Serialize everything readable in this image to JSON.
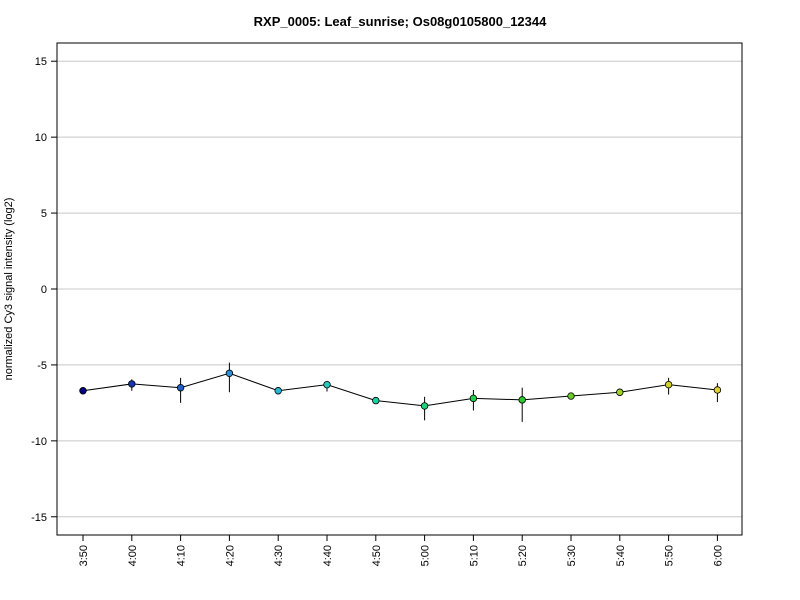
{
  "chart_data": {
    "type": "line",
    "title": "RXP_0005: Leaf_sunrise; Os08g0105800_12344",
    "xlabel": "",
    "ylabel": "normalized Cy3 signal intensity (log2)",
    "ylim": [
      -16.2,
      16.2
    ],
    "yticks": [
      -15,
      -10,
      -5,
      0,
      5,
      10,
      15
    ],
    "grid": true,
    "categories": [
      "3:50",
      "4:00",
      "4:10",
      "4:20",
      "4:30",
      "4:40",
      "4:50",
      "5:00",
      "5:10",
      "5:20",
      "5:30",
      "5:40",
      "5:50",
      "6:00"
    ],
    "values": [
      -6.7,
      -6.25,
      -6.5,
      -5.55,
      -6.7,
      -6.3,
      -7.35,
      -7.7,
      -7.2,
      -7.3,
      -7.05,
      -6.8,
      -6.3,
      -6.65
    ],
    "error_low": [
      -6.8,
      -6.7,
      -7.5,
      -6.8,
      -6.8,
      -6.75,
      -7.45,
      -8.65,
      -8.0,
      -8.75,
      -7.15,
      -6.9,
      -6.95,
      -7.45
    ],
    "error_high": [
      -6.6,
      -5.95,
      -5.85,
      -4.85,
      -6.6,
      -6.05,
      -7.25,
      -7.1,
      -6.65,
      -6.5,
      -6.95,
      -6.7,
      -5.85,
      -6.2
    ],
    "point_colors": [
      "#000080",
      "#1a33b3",
      "#1f5fcc",
      "#2b8ed9",
      "#26b8d9",
      "#26c9bf",
      "#1ecfa0",
      "#1ed27a",
      "#1ecf4f",
      "#2ec82e",
      "#6acb2a",
      "#9fd12a",
      "#d2d226",
      "#e0d030"
    ],
    "line_color": "#000000",
    "grid_color": "#c8c8c8"
  }
}
